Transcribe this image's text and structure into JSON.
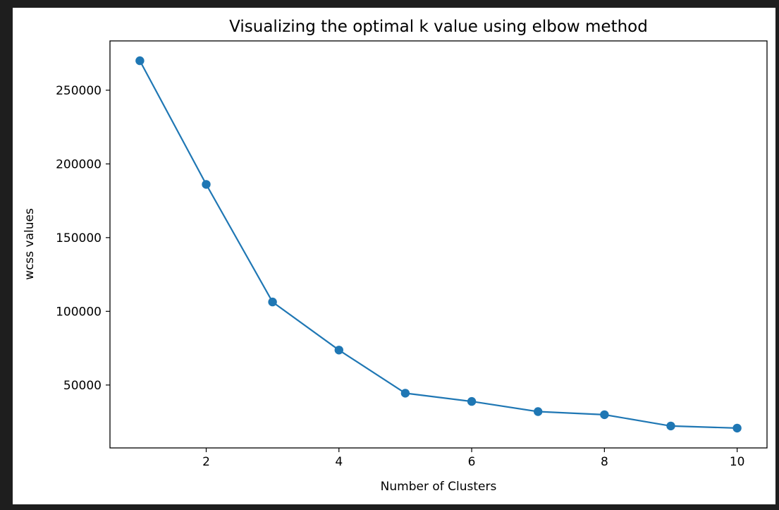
{
  "chart_data": {
    "type": "line",
    "title": "Visualizing the optimal k value using elbow method",
    "xlabel": "Number of Clusters",
    "ylabel": "wcss values",
    "x": [
      1,
      2,
      3,
      4,
      5,
      6,
      7,
      8,
      9,
      10
    ],
    "series": [
      {
        "values": [
          269981,
          186108,
          106348,
          73679,
          44448,
          38858,
          31969,
          29861,
          22210,
          20786
        ],
        "color": "#1f77b4",
        "marker": "circle"
      }
    ],
    "xlim": [
      0.55,
      10.45
    ],
    "ylim": [
      7325,
      283442
    ],
    "xticks": [
      2,
      4,
      6,
      8,
      10
    ],
    "yticks": [
      50000,
      100000,
      150000,
      200000,
      250000
    ],
    "grid": false,
    "legend": false
  }
}
